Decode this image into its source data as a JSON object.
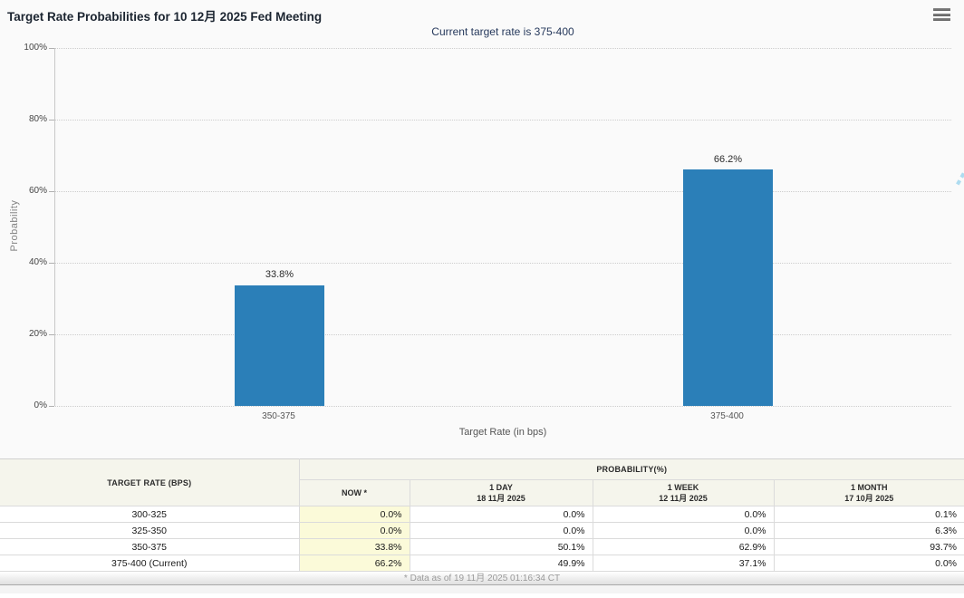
{
  "header": {
    "title": "Target Rate Probabilities for 10 12月 2025 Fed Meeting",
    "subtitle": "Current target rate is 375-400"
  },
  "chart_data": {
    "type": "bar",
    "title": "Target Rate Probabilities for 10 12月 2025 Fed Meeting",
    "categories": [
      "350-375",
      "375-400"
    ],
    "values": [
      33.8,
      66.2
    ],
    "labels": [
      "33.8%",
      "66.2%"
    ],
    "xlabel": "Target Rate (in bps)",
    "ylabel": "Probability",
    "ylim": [
      0,
      100
    ],
    "yticks": [
      "0%",
      "20%",
      "40%",
      "60%",
      "80%",
      "100%"
    ],
    "grid": "horizontal-dotted",
    "legend": "none",
    "watermark": "Q"
  },
  "colors": {
    "bar": "#2b7fb8",
    "highlight_cell": "#fbfad9",
    "header_bg": "#f5f5ec",
    "subtitle_text": "#26395c",
    "watermark_gray": "#c6c6c6",
    "watermark_blue": "#aedcf0"
  },
  "table": {
    "first_col_header": "TARGET RATE (BPS)",
    "group_header": "PROBABILITY(%)",
    "columns": [
      {
        "label": "NOW *",
        "date": ""
      },
      {
        "label": "1 DAY",
        "date": "18 11月 2025"
      },
      {
        "label": "1 WEEK",
        "date": "12 11月 2025"
      },
      {
        "label": "1 MONTH",
        "date": "17 10月 2025"
      }
    ],
    "rows": [
      {
        "rate": "300-325",
        "now": "0.0%",
        "day": "0.0%",
        "week": "0.0%",
        "month": "0.1%"
      },
      {
        "rate": "325-350",
        "now": "0.0%",
        "day": "0.0%",
        "week": "0.0%",
        "month": "6.3%"
      },
      {
        "rate": "350-375",
        "now": "33.8%",
        "day": "50.1%",
        "week": "62.9%",
        "month": "93.7%"
      },
      {
        "rate": "375-400 (Current)",
        "now": "66.2%",
        "day": "49.9%",
        "week": "37.1%",
        "month": "0.0%"
      }
    ]
  },
  "footer": {
    "note": "* Data as of 19 11月 2025 01:16:34 CT"
  }
}
